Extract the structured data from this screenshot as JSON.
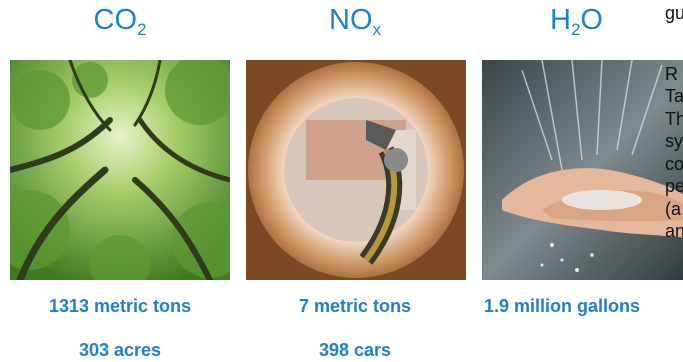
{
  "columns": [
    {
      "heading": {
        "base": "CO",
        "sub": "2"
      },
      "stat1": "1313 metric tons",
      "stat2": "303 acres",
      "image": "forest-canopy"
    },
    {
      "heading": {
        "base": "NO",
        "sub": "x"
      },
      "stat1": "7 metric tons",
      "stat2": "398 cars",
      "image": "fuel-nozzle"
    },
    {
      "heading": {
        "base": "H",
        "sub": "2",
        "tail": "O"
      },
      "stat1": "1.9 million gallons",
      "image": "water-hands"
    }
  ],
  "side_text": {
    "first": "gu",
    "lines": [
      "R",
      "Ta",
      "Th",
      "sy",
      "co",
      "pe",
      "(a",
      "an"
    ]
  },
  "colors": {
    "accent": "#1f7fd0"
  }
}
